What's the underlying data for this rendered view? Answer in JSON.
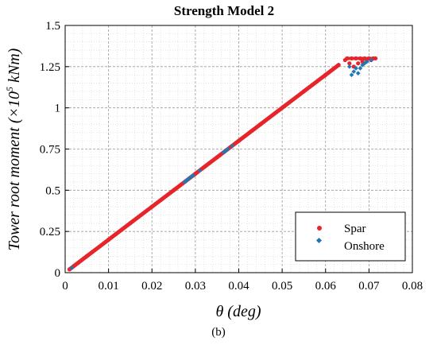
{
  "caption": "(b)",
  "chart_data": {
    "type": "scatter",
    "title": "Strength Model 2",
    "xlabel": "θ (deg)",
    "ylabel_main": "Tower root moment (×10",
    "ylabel_sup": "5",
    "ylabel_tail": " kNm)",
    "xlim": [
      0,
      0.08
    ],
    "ylim": [
      0,
      1.5
    ],
    "xticks": [
      0,
      0.01,
      0.02,
      0.03,
      0.04,
      0.05,
      0.06,
      0.07,
      0.08
    ],
    "xtick_labels": [
      "0",
      "0.01",
      "0.02",
      "0.03",
      "0.04",
      "0.05",
      "0.06",
      "0.07",
      "0.08"
    ],
    "yticks": [
      0,
      0.25,
      0.5,
      0.75,
      1,
      1.25,
      1.5
    ],
    "ytick_labels": [
      "0",
      "0.25",
      "0.5",
      "0.75",
      "1",
      "1.25",
      "1.5"
    ],
    "grid": true,
    "legend_position": "bottom-right",
    "series": [
      {
        "name": "Spar",
        "color": "#e8242b",
        "marker": "circle",
        "x": [
          0.001,
          0.005,
          0.01,
          0.015,
          0.02,
          0.025,
          0.03,
          0.035,
          0.04,
          0.045,
          0.05,
          0.055,
          0.06,
          0.063,
          0.0645,
          0.065,
          0.066,
          0.067,
          0.068,
          0.069,
          0.07,
          0.071,
          0.0715,
          0.0655,
          0.0665,
          0.0675,
          0.0685,
          0.0695,
          0.0705
        ],
        "y": [
          0.02,
          0.1,
          0.2,
          0.3,
          0.4,
          0.5,
          0.6,
          0.7,
          0.8,
          0.9,
          1.0,
          1.1,
          1.2,
          1.26,
          1.29,
          1.3,
          1.3,
          1.3,
          1.3,
          1.3,
          1.3,
          1.3,
          1.3,
          1.27,
          1.25,
          1.27,
          1.28,
          1.29,
          1.29
        ]
      },
      {
        "name": "Onshore",
        "color": "#1f78b4",
        "marker": "diamond",
        "x": [
          0.0015,
          0.0275,
          0.028,
          0.0285,
          0.029,
          0.0295,
          0.031,
          0.0365,
          0.037,
          0.0375,
          0.0385,
          0.0655,
          0.066,
          0.0665,
          0.067,
          0.0675,
          0.068,
          0.0685,
          0.069,
          0.0695,
          0.0705
        ],
        "y": [
          0.03,
          0.55,
          0.56,
          0.57,
          0.58,
          0.59,
          0.62,
          0.73,
          0.74,
          0.75,
          0.77,
          1.25,
          1.2,
          1.22,
          1.24,
          1.21,
          1.24,
          1.26,
          1.27,
          1.28,
          1.29
        ]
      }
    ]
  }
}
